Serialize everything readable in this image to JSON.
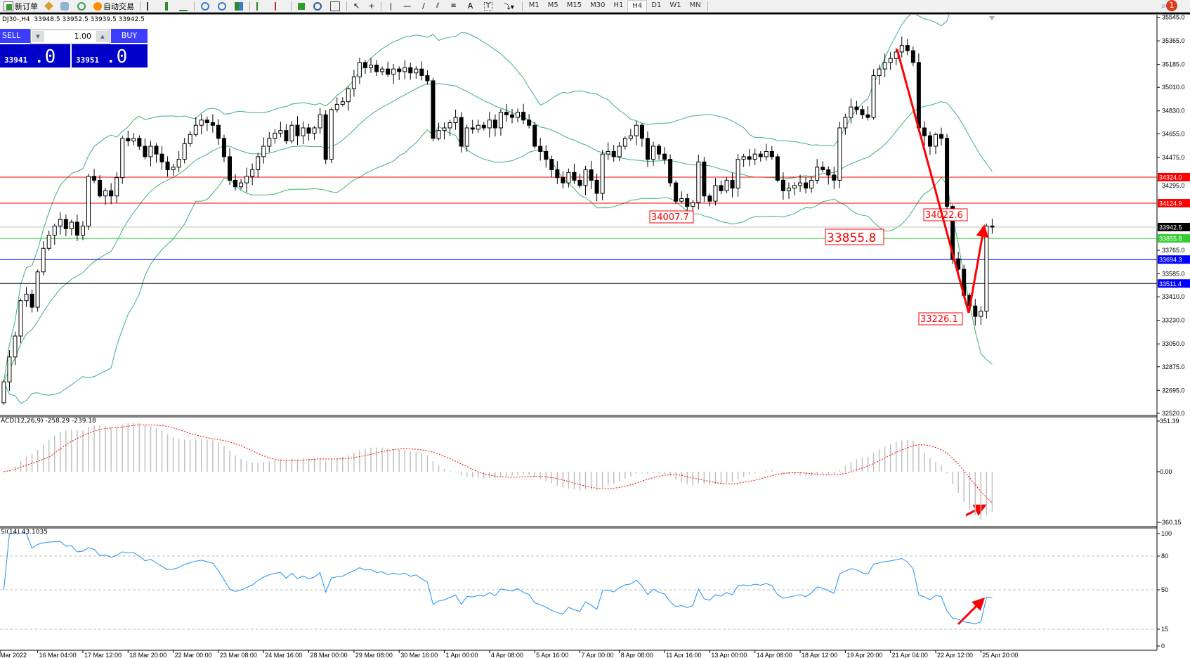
{
  "toolbar": {
    "new_order_label": "新订单",
    "auto_trading_label": "自动交易",
    "timeframes": [
      "M1",
      "M5",
      "M15",
      "M30",
      "H1",
      "H4",
      "D1",
      "W1",
      "MN"
    ],
    "active_timeframe": "H4",
    "notification_count": "1"
  },
  "chart_header": {
    "symbol": "DJ30-,H4",
    "ohlc": "33948.5 33952.5 33939.5 33942.5"
  },
  "one_click": {
    "sell_label": "SELL",
    "buy_label": "BUY",
    "lot": "1.00",
    "sell_price_main": "33941",
    "sell_price_big": ".0",
    "buy_price_main": "33951",
    "buy_price_big": ".0",
    "color": "#0000c8"
  },
  "chart_data": {
    "type": "candlestick",
    "y_ticks": [
      "35545.0",
      "35365.0",
      "35185.0",
      "35010.0",
      "34830.0",
      "34655.0",
      "34475.0",
      "34295.0",
      "33765.0",
      "33585.0",
      "33410.0",
      "33230.0",
      "33050.0",
      "32875.0",
      "32695.0",
      "32520.0"
    ],
    "ylim": [
      32520,
      35545
    ],
    "x_ticks": [
      {
        "bar": 0,
        "label": "Mar 2022"
      },
      {
        "bar": 6,
        "label": "16 Mar 04:00"
      },
      {
        "bar": 14,
        "label": "17 Mar 12:00"
      },
      {
        "bar": 22,
        "label": "18 Mar 20:00"
      },
      {
        "bar": 30,
        "label": "22 Mar 00:00"
      },
      {
        "bar": 38,
        "label": "23 Mar 08:00"
      },
      {
        "bar": 46,
        "label": "24 Mar 16:00"
      },
      {
        "bar": 54,
        "label": "28 Mar 00:00"
      },
      {
        "bar": 62,
        "label": "29 Mar 08:00"
      },
      {
        "bar": 70,
        "label": "30 Mar 16:00"
      },
      {
        "bar": 78,
        "label": "1 Apr 00:00"
      },
      {
        "bar": 86,
        "label": "4 Apr 08:00"
      },
      {
        "bar": 94,
        "label": "5 Apr 16:00"
      },
      {
        "bar": 102,
        "label": "7 Apr 00:00"
      },
      {
        "bar": 109,
        "label": "8 Apr 08:00"
      },
      {
        "bar": 117,
        "label": "11 Apr 16:00"
      },
      {
        "bar": 125,
        "label": "13 Apr 00:00"
      },
      {
        "bar": 133,
        "label": "14 Apr 08:00"
      },
      {
        "bar": 141,
        "label": "18 Apr 12:00"
      },
      {
        "bar": 149,
        "label": "19 Apr 20:00"
      },
      {
        "bar": 157,
        "label": "21 Apr 04:00"
      },
      {
        "bar": 165,
        "label": "22 Apr 12:00"
      },
      {
        "bar": 173,
        "label": "25 Apr 20:00"
      }
    ],
    "close": [
      32760,
      32950,
      33110,
      33380,
      33430,
      33330,
      33600,
      33780,
      33880,
      33950,
      34000,
      33930,
      33980,
      33880,
      33950,
      34330,
      34300,
      34180,
      34220,
      34180,
      34320,
      34620,
      34600,
      34620,
      34560,
      34480,
      34560,
      34500,
      34440,
      34380,
      34400,
      34460,
      34580,
      34650,
      34720,
      34760,
      34740,
      34720,
      34620,
      34480,
      34300,
      34250,
      34280,
      34330,
      34380,
      34480,
      34560,
      34620,
      34660,
      34680,
      34600,
      34720,
      34640,
      34700,
      34660,
      34700,
      34800,
      34460,
      34840,
      34880,
      34900,
      35000,
      35090,
      35200,
      35160,
      35180,
      35130,
      35150,
      35110,
      35150,
      35130,
      35160,
      35120,
      35150,
      35100,
      35060,
      34620,
      34680,
      34700,
      34740,
      34780,
      34560,
      34700,
      34690,
      34720,
      34700,
      34760,
      34700,
      34820,
      34800,
      34780,
      34820,
      34760,
      34720,
      34560,
      34520,
      34460,
      34380,
      34320,
      34280,
      34360,
      34300,
      34260,
      34380,
      34300,
      34200,
      34500,
      34520,
      34480,
      34560,
      34620,
      34640,
      34720,
      34620,
      34460,
      34560,
      34500,
      34460,
      34280,
      34140,
      34160,
      34100,
      34130,
      34440,
      34180,
      34140,
      34260,
      34220,
      34300,
      34240,
      34460,
      34480,
      34460,
      34500,
      34480,
      34520,
      34480,
      34300,
      34220,
      34240,
      34260,
      34280,
      34240,
      34300,
      34400,
      34380,
      34340,
      34300,
      34700,
      34780,
      34860,
      34840,
      34800,
      34780,
      35100,
      35150,
      35200,
      35230,
      35280,
      35330,
      35290,
      35200,
      34700,
      34640,
      34560,
      34650,
      34620,
      34100,
      33700,
      33620,
      33420,
      33340,
      33260,
      33300,
      33950,
      33942.5
    ],
    "hlines": [
      {
        "price": "34324.0",
        "color": "#ff0000",
        "label_bg": "#ff0000"
      },
      {
        "price": "34124.9",
        "color": "#ff0000",
        "label_bg": "#ff0000"
      },
      {
        "price": "33942.5",
        "color": "#c0c0c0",
        "label_bg": "#000000"
      },
      {
        "price": "33855.8",
        "color": "#32cd32",
        "label_bg": "#32cd32"
      },
      {
        "price": "33694.3",
        "color": "#0000ff",
        "label_bg": "#0000ff"
      },
      {
        "price": "33511.4",
        "color": "#000000",
        "label_bg": "#0000ff"
      }
    ],
    "annotations": [
      {
        "text": "34007.7",
        "bar": 115,
        "big": false
      },
      {
        "text": "33855.8",
        "bar": 146,
        "big": true
      },
      {
        "text": "34022.6",
        "bar": 164,
        "big": false
      },
      {
        "text": "33226.1",
        "bar": 163,
        "big": false
      }
    ],
    "trend_arrows_color": "#ff0000",
    "bollinger_color": "#3cb371"
  },
  "macd": {
    "label": "ACD(12,26,9) -258.29 -239.18",
    "y_ticks": [
      "351.39",
      "0.00",
      "-360.15"
    ],
    "hist_color": "#c0c0c0",
    "signal_color": "#ff0000"
  },
  "rsi": {
    "label": "SI(14) 43.1035",
    "y_ticks": [
      "100",
      "80",
      "50",
      "15",
      "0"
    ],
    "line_color": "#1e90ff"
  }
}
